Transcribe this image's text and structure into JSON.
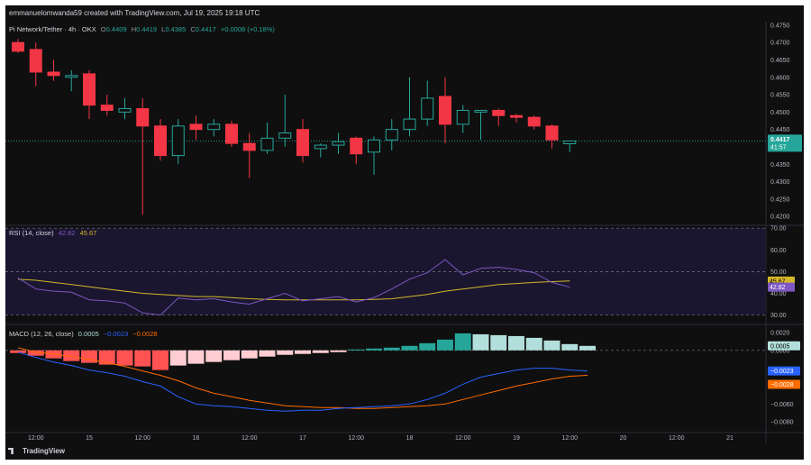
{
  "header": {
    "created_by": "emmanuelomwanda59 created with TradingView.com, Jul 19, 2025 19:18 UTC"
  },
  "symbol_legend": {
    "name": "Pi Network/Tether · 4h · OKX",
    "o_label": "O",
    "o_value": "0.4409",
    "h_label": "H",
    "h_value": "0.4419",
    "l_label": "L",
    "l_value": "0.4385",
    "c_label": "C",
    "c_value": "0.4417",
    "change": "+0.0008 (+0.18%)"
  },
  "rsi_legend": {
    "name": "RSI (14, close)",
    "rsi": "42.82",
    "ma": "45.67"
  },
  "macd_legend": {
    "name": "MACD (12, 26, close)",
    "hist": "0.0005",
    "macd": "−0.0023",
    "signal": "−0.0028"
  },
  "price_tag": {
    "value": "0.4417",
    "countdown": "41:57"
  },
  "rsi_tags": {
    "ma": "45.67",
    "rsi": "42.82"
  },
  "macd_tags": {
    "hist": "0.0005",
    "macd": "−0.0023",
    "signal": "−0.0028"
  },
  "branding": "TradingView",
  "colors": {
    "up": "#26a69a",
    "down": "#f23645",
    "rsi_line": "#7e57c2",
    "rsi_ma": "#d4b62a",
    "macd_line": "#2962ff",
    "signal_line": "#ff6d00",
    "hist_up_strong": "#26a69a",
    "hist_up_weak": "#b2dfdb",
    "hist_down_strong": "#ff5252",
    "hist_down_weak": "#ffcdd2"
  },
  "chart_data": [
    {
      "type": "candlestick",
      "title": "Pi Network/Tether · 4h · OKX",
      "y_axis_labels": [
        "0.4750",
        "0.4700",
        "0.4650",
        "0.4600",
        "0.4550",
        "0.4500",
        "0.4450",
        "0.4400",
        "0.4350",
        "0.4300",
        "0.4250",
        "0.4200"
      ],
      "ylim": [
        0.4185,
        0.476
      ],
      "x_axis_labels": [
        "12:00",
        "15",
        "12:00",
        "16",
        "12:00",
        "17",
        "12:00",
        "18",
        "12:00",
        "19",
        "12:00",
        "20",
        "12:00",
        "21"
      ],
      "x_axis_label_slots": [
        1,
        4,
        7,
        10,
        13,
        16,
        19,
        22,
        25,
        28,
        31,
        34,
        37,
        40
      ],
      "last_price_line": 0.4417,
      "candles": [
        {
          "o": 0.47,
          "h": 0.471,
          "l": 0.467,
          "c": 0.4675
        },
        {
          "o": 0.468,
          "h": 0.47,
          "l": 0.4575,
          "c": 0.4615
        },
        {
          "o": 0.4615,
          "h": 0.465,
          "l": 0.459,
          "c": 0.4605
        },
        {
          "o": 0.46,
          "h": 0.462,
          "l": 0.456,
          "c": 0.4605
        },
        {
          "o": 0.461,
          "h": 0.462,
          "l": 0.448,
          "c": 0.452
        },
        {
          "o": 0.452,
          "h": 0.455,
          "l": 0.449,
          "c": 0.4505
        },
        {
          "o": 0.45,
          "h": 0.454,
          "l": 0.448,
          "c": 0.451
        },
        {
          "o": 0.451,
          "h": 0.454,
          "l": 0.4205,
          "c": 0.446
        },
        {
          "o": 0.446,
          "h": 0.448,
          "l": 0.436,
          "c": 0.4375
        },
        {
          "o": 0.4375,
          "h": 0.448,
          "l": 0.435,
          "c": 0.446
        },
        {
          "o": 0.4465,
          "h": 0.449,
          "l": 0.442,
          "c": 0.445
        },
        {
          "o": 0.445,
          "h": 0.448,
          "l": 0.443,
          "c": 0.4465
        },
        {
          "o": 0.4465,
          "h": 0.4475,
          "l": 0.44,
          "c": 0.441
        },
        {
          "o": 0.441,
          "h": 0.444,
          "l": 0.431,
          "c": 0.439
        },
        {
          "o": 0.439,
          "h": 0.447,
          "l": 0.438,
          "c": 0.4425
        },
        {
          "o": 0.4425,
          "h": 0.455,
          "l": 0.44,
          "c": 0.444
        },
        {
          "o": 0.445,
          "h": 0.448,
          "l": 0.4355,
          "c": 0.4375
        },
        {
          "o": 0.4395,
          "h": 0.441,
          "l": 0.437,
          "c": 0.4405
        },
        {
          "o": 0.4405,
          "h": 0.444,
          "l": 0.438,
          "c": 0.4415
        },
        {
          "o": 0.4425,
          "h": 0.443,
          "l": 0.435,
          "c": 0.438
        },
        {
          "o": 0.4385,
          "h": 0.443,
          "l": 0.432,
          "c": 0.442
        },
        {
          "o": 0.442,
          "h": 0.448,
          "l": 0.439,
          "c": 0.445
        },
        {
          "o": 0.445,
          "h": 0.46,
          "l": 0.443,
          "c": 0.448
        },
        {
          "o": 0.448,
          "h": 0.459,
          "l": 0.446,
          "c": 0.454
        },
        {
          "o": 0.4545,
          "h": 0.46,
          "l": 0.441,
          "c": 0.4465
        },
        {
          "o": 0.4465,
          "h": 0.452,
          "l": 0.444,
          "c": 0.4505
        },
        {
          "o": 0.45,
          "h": 0.4505,
          "l": 0.442,
          "c": 0.4505
        },
        {
          "o": 0.4505,
          "h": 0.451,
          "l": 0.446,
          "c": 0.449
        },
        {
          "o": 0.449,
          "h": 0.4495,
          "l": 0.447,
          "c": 0.4485
        },
        {
          "o": 0.4485,
          "h": 0.449,
          "l": 0.445,
          "c": 0.446
        },
        {
          "o": 0.446,
          "h": 0.4465,
          "l": 0.4395,
          "c": 0.442
        },
        {
          "o": 0.4409,
          "h": 0.4419,
          "l": 0.4385,
          "c": 0.4417
        }
      ]
    },
    {
      "type": "line",
      "title": "RSI (14, close)",
      "y_axis_labels": [
        "70.00",
        "60.00",
        "50.00",
        "40.00",
        "30.00"
      ],
      "ylim": [
        26.5,
        70.5
      ],
      "bands": [
        70,
        50,
        30
      ],
      "series": [
        {
          "name": "RSI",
          "values": [
            47.1,
            42.0,
            41.0,
            40.5,
            37.0,
            36.5,
            35.5,
            31.0,
            30.0,
            37.8,
            37.0,
            37.5,
            36.0,
            35.0,
            37.5,
            40.0,
            36.5,
            37.5,
            38.5,
            36.0,
            38.0,
            42.0,
            46.5,
            49.5,
            55.5,
            48.5,
            51.5,
            52.0,
            51.0,
            49.5,
            45.0,
            42.82
          ]
        },
        {
          "name": "RSI-based MA",
          "values": [
            46.5,
            46.0,
            45.0,
            44.0,
            43.0,
            42.0,
            41.0,
            40.0,
            39.5,
            39.0,
            38.5,
            38.5,
            38.0,
            37.5,
            37.2,
            37.0,
            37.0,
            37.0,
            37.0,
            37.0,
            37.2,
            37.5,
            38.5,
            39.5,
            41.0,
            42.0,
            43.0,
            44.0,
            44.5,
            45.0,
            45.4,
            45.67
          ]
        }
      ]
    },
    {
      "type": "bar",
      "title": "MACD (12, 26, close)",
      "y_axis_labels": [
        "0.0020",
        "0.0000",
        "−0.0040",
        "−0.0060",
        "−0.0080"
      ],
      "ylim": [
        -0.009,
        0.0027
      ],
      "series": [
        {
          "name": "Histogram",
          "values": [
            -0.0003,
            -0.0006,
            -0.0009,
            -0.0012,
            -0.0014,
            -0.0016,
            -0.0017,
            -0.0018,
            -0.0022,
            -0.0017,
            -0.0015,
            -0.0013,
            -0.0011,
            -0.0009,
            -0.0007,
            -0.0005,
            -0.0004,
            -0.0003,
            -0.0002,
            0.0001,
            0.0002,
            0.0003,
            0.0005,
            0.0008,
            0.0012,
            0.0019,
            0.0018,
            0.0017,
            0.0016,
            0.0014,
            0.0011,
            0.0007,
            0.0005
          ]
        },
        {
          "name": "MACD",
          "values": [
            -0.0002,
            -0.0008,
            -0.0013,
            -0.0017,
            -0.0022,
            -0.0025,
            -0.0029,
            -0.0035,
            -0.004,
            -0.0052,
            -0.006,
            -0.0062,
            -0.0063,
            -0.0065,
            -0.0067,
            -0.0068,
            -0.0067,
            -0.0067,
            -0.0065,
            -0.0064,
            -0.0063,
            -0.0062,
            -0.006,
            -0.0055,
            -0.0048,
            -0.0038,
            -0.003,
            -0.0026,
            -0.0022,
            -0.002,
            -0.002,
            -0.0022,
            -0.0023
          ]
        },
        {
          "name": "Signal",
          "values": [
            0.0003,
            -0.0002,
            -0.0004,
            -0.0007,
            -0.001,
            -0.0014,
            -0.0018,
            -0.0023,
            -0.0028,
            -0.0034,
            -0.0042,
            -0.0048,
            -0.0052,
            -0.0056,
            -0.0059,
            -0.0062,
            -0.0063,
            -0.0064,
            -0.0064,
            -0.0065,
            -0.0065,
            -0.0064,
            -0.0063,
            -0.0062,
            -0.006,
            -0.0055,
            -0.005,
            -0.0045,
            -0.004,
            -0.0036,
            -0.0032,
            -0.0029,
            -0.0028
          ]
        }
      ]
    }
  ]
}
